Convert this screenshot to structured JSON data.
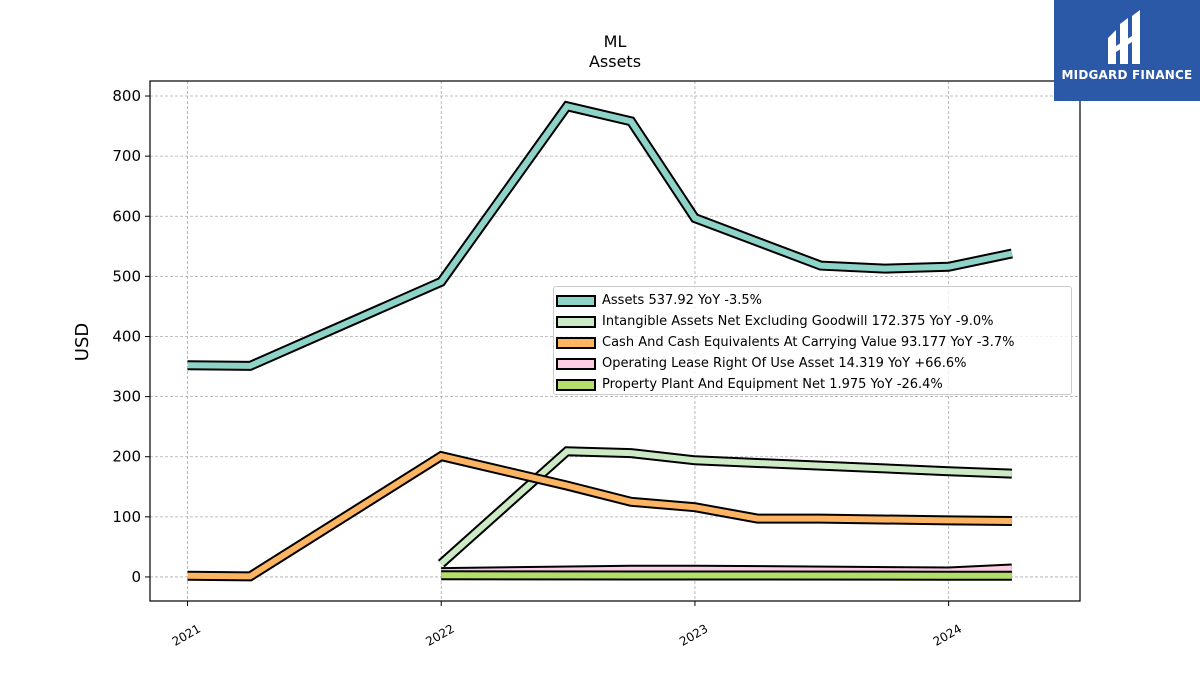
{
  "title": "ML",
  "subtitle": "Assets",
  "brand": {
    "name": "MIDGARD FINANCE",
    "color": "#2c58a8"
  },
  "chart_data": {
    "type": "line",
    "ylabel": "USD",
    "xlabel": "",
    "ylim": [
      -40,
      825
    ],
    "xlim": [
      "2020-11-08",
      "2024-07-08"
    ],
    "yticks": [
      0,
      100,
      200,
      300,
      400,
      500,
      600,
      700,
      800
    ],
    "xticks": [
      "2021-01-01",
      "2022-01-01",
      "2023-01-01",
      "2024-01-01"
    ],
    "xtick_labels": [
      "2021",
      "2022",
      "2023",
      "2024"
    ],
    "grid": true,
    "legend_position": "center-right",
    "series": [
      {
        "name": "Assets",
        "legend": "Assets  537.92 YoY -3.5%",
        "color": "#8dd3c7",
        "points": [
          [
            "2021-01-01",
            352
          ],
          [
            "2021-04-01",
            351
          ],
          [
            "2022-01-01",
            491
          ],
          [
            "2022-07-01",
            783
          ],
          [
            "2022-10-01",
            758
          ],
          [
            "2023-01-01",
            597
          ],
          [
            "2023-07-01",
            518
          ],
          [
            "2023-10-01",
            513
          ],
          [
            "2024-01-01",
            516
          ],
          [
            "2024-04-01",
            538
          ]
        ]
      },
      {
        "name": "Intangible Assets Net Excluding Goodwill",
        "legend": "Intangible Assets Net Excluding Goodwill  172.375 YoY -9.0%",
        "color": "#ccebc5",
        "points": [
          [
            "2022-01-01",
            22
          ],
          [
            "2022-07-01",
            209
          ],
          [
            "2022-10-01",
            206
          ],
          [
            "2023-01-01",
            194
          ],
          [
            "2024-01-01",
            176
          ],
          [
            "2024-04-01",
            172
          ]
        ]
      },
      {
        "name": "Cash And Cash Equivalents At Carrying Value",
        "legend": "Cash And Cash Equivalents At Carrying Value  93.177 YoY -3.7%",
        "color": "#fdb462",
        "points": [
          [
            "2021-01-01",
            2
          ],
          [
            "2021-04-01",
            1
          ],
          [
            "2022-01-01",
            201
          ],
          [
            "2022-07-01",
            152
          ],
          [
            "2022-10-01",
            125
          ],
          [
            "2023-01-01",
            116
          ],
          [
            "2023-04-01",
            97
          ],
          [
            "2023-07-01",
            97
          ],
          [
            "2024-01-01",
            94
          ],
          [
            "2024-04-01",
            93
          ]
        ]
      },
      {
        "name": "Operating Lease Right Of Use Asset",
        "legend": "Operating Lease Right Of Use Asset  14.319 YoY +66.6%",
        "color": "#fccde5",
        "points": [
          [
            "2022-01-01",
            8
          ],
          [
            "2022-10-01",
            12
          ],
          [
            "2023-01-01",
            12
          ],
          [
            "2024-01-01",
            9
          ],
          [
            "2024-04-01",
            14
          ]
        ]
      },
      {
        "name": "Property Plant And Equipment Net",
        "legend": "Property Plant And Equipment Net  1.975 YoY -26.4%",
        "color": "#b3de69",
        "points": [
          [
            "2022-01-01",
            2.7
          ],
          [
            "2023-01-01",
            2.5
          ],
          [
            "2024-01-01",
            2.1
          ],
          [
            "2024-04-01",
            2.0
          ]
        ]
      }
    ]
  }
}
